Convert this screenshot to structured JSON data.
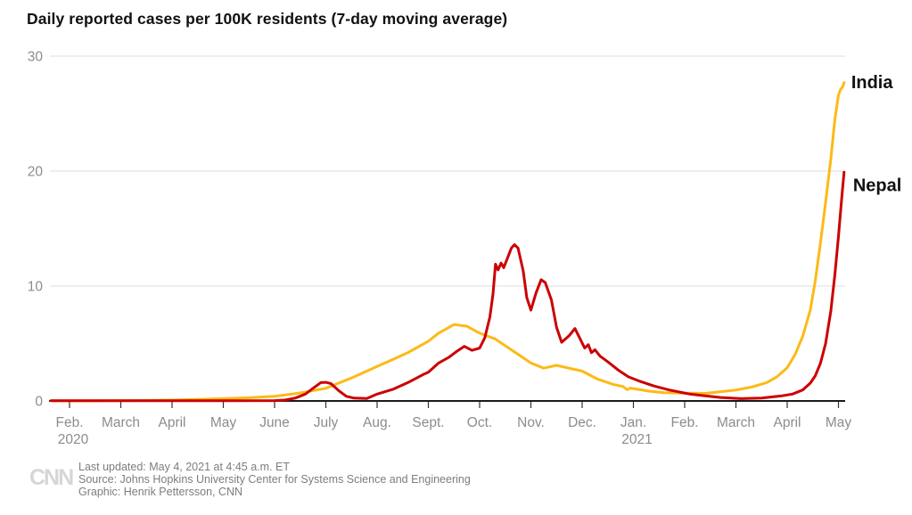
{
  "chart_data": {
    "type": "line",
    "title": "Daily reported cases per 100K residents (7-day moving average)",
    "xlabel": "",
    "ylabel": "",
    "ylim": [
      0,
      30
    ],
    "grid": "horizontal-only",
    "legend_position": "line-end-labels",
    "x_unit": "month_tick_index (0 = Feb 2020, 15 = May 2021)",
    "x_axis": {
      "tick_labels": [
        "Feb.",
        "March",
        "April",
        "May",
        "June",
        "July",
        "Aug.",
        "Sept.",
        "Oct.",
        "Nov.",
        "Dec.",
        "Jan.",
        "Feb.",
        "March",
        "April",
        "May"
      ],
      "year_labels": [
        {
          "tick_index": 0,
          "label": "2020"
        },
        {
          "tick_index": 11,
          "label": "2021"
        }
      ]
    },
    "y_axis": {
      "ticks": [
        0,
        10,
        20,
        30
      ]
    },
    "colors": {
      "axis": "#1a1a1a",
      "gridline": "#e3e3e3",
      "tick_text": "#8c8c8c",
      "label_text": "#111111"
    },
    "series": [
      {
        "name": "India",
        "color": "#fcba16",
        "label_offset": {
          "dx": 8,
          "dy": 1
        },
        "points": [
          [
            -0.36,
            0.02
          ],
          [
            0,
            0.02
          ],
          [
            0.5,
            0.02
          ],
          [
            1,
            0.03
          ],
          [
            1.5,
            0.05
          ],
          [
            2,
            0.08
          ],
          [
            2.5,
            0.13
          ],
          [
            3,
            0.2
          ],
          [
            3.5,
            0.28
          ],
          [
            4,
            0.4
          ],
          [
            4.5,
            0.7
          ],
          [
            5,
            1.1
          ],
          [
            5.5,
            2.0
          ],
          [
            6,
            3.0
          ],
          [
            6.3,
            3.6
          ],
          [
            6.6,
            4.2
          ],
          [
            7,
            5.2
          ],
          [
            7.2,
            5.9
          ],
          [
            7.5,
            6.65
          ],
          [
            7.75,
            6.5
          ],
          [
            8,
            5.9
          ],
          [
            8.3,
            5.4
          ],
          [
            8.6,
            4.5
          ],
          [
            9,
            3.3
          ],
          [
            9.25,
            2.85
          ],
          [
            9.5,
            3.1
          ],
          [
            9.7,
            2.9
          ],
          [
            10,
            2.6
          ],
          [
            10.3,
            1.9
          ],
          [
            10.6,
            1.45
          ],
          [
            10.8,
            1.25
          ],
          [
            10.88,
            0.98
          ],
          [
            10.94,
            1.12
          ],
          [
            11,
            1.08
          ],
          [
            11.3,
            0.85
          ],
          [
            11.6,
            0.72
          ],
          [
            12,
            0.68
          ],
          [
            12.4,
            0.66
          ],
          [
            12.8,
            0.85
          ],
          [
            13,
            0.95
          ],
          [
            13.3,
            1.2
          ],
          [
            13.6,
            1.6
          ],
          [
            13.8,
            2.1
          ],
          [
            14,
            2.9
          ],
          [
            14.15,
            4.0
          ],
          [
            14.3,
            5.6
          ],
          [
            14.45,
            7.9
          ],
          [
            14.55,
            10.5
          ],
          [
            14.65,
            13.8
          ],
          [
            14.75,
            17.3
          ],
          [
            14.85,
            21.0
          ],
          [
            14.93,
            24.5
          ],
          [
            15.0,
            26.6
          ],
          [
            15.04,
            27.1
          ],
          [
            15.08,
            27.3
          ],
          [
            15.11,
            27.7
          ]
        ]
      },
      {
        "name": "Nepal",
        "color": "#cc0000",
        "label_offset": {
          "dx": 10,
          "dy": 16
        },
        "points": [
          [
            -0.36,
            0.02
          ],
          [
            1,
            0.02
          ],
          [
            2,
            0.02
          ],
          [
            3,
            0.02
          ],
          [
            4,
            0.03
          ],
          [
            4.2,
            0.08
          ],
          [
            4.4,
            0.25
          ],
          [
            4.6,
            0.6
          ],
          [
            4.75,
            1.1
          ],
          [
            4.9,
            1.6
          ],
          [
            5.0,
            1.62
          ],
          [
            5.1,
            1.5
          ],
          [
            5.25,
            0.9
          ],
          [
            5.4,
            0.4
          ],
          [
            5.55,
            0.25
          ],
          [
            5.8,
            0.22
          ],
          [
            6.0,
            0.6
          ],
          [
            6.3,
            1.0
          ],
          [
            6.6,
            1.6
          ],
          [
            6.9,
            2.3
          ],
          [
            7.0,
            2.5
          ],
          [
            7.2,
            3.3
          ],
          [
            7.4,
            3.8
          ],
          [
            7.55,
            4.3
          ],
          [
            7.7,
            4.75
          ],
          [
            7.85,
            4.4
          ],
          [
            8.0,
            4.6
          ],
          [
            8.1,
            5.5
          ],
          [
            8.2,
            7.3
          ],
          [
            8.26,
            9.3
          ],
          [
            8.31,
            11.9
          ],
          [
            8.36,
            11.4
          ],
          [
            8.42,
            12.0
          ],
          [
            8.47,
            11.6
          ],
          [
            8.55,
            12.5
          ],
          [
            8.62,
            13.3
          ],
          [
            8.68,
            13.6
          ],
          [
            8.75,
            13.3
          ],
          [
            8.85,
            11.3
          ],
          [
            8.92,
            9.0
          ],
          [
            9.0,
            7.9
          ],
          [
            9.1,
            9.4
          ],
          [
            9.2,
            10.55
          ],
          [
            9.28,
            10.3
          ],
          [
            9.4,
            8.8
          ],
          [
            9.5,
            6.4
          ],
          [
            9.6,
            5.1
          ],
          [
            9.75,
            5.7
          ],
          [
            9.86,
            6.3
          ],
          [
            9.95,
            5.5
          ],
          [
            10.05,
            4.6
          ],
          [
            10.12,
            4.9
          ],
          [
            10.18,
            4.2
          ],
          [
            10.25,
            4.45
          ],
          [
            10.35,
            3.9
          ],
          [
            10.5,
            3.4
          ],
          [
            10.7,
            2.7
          ],
          [
            10.9,
            2.1
          ],
          [
            11.1,
            1.75
          ],
          [
            11.4,
            1.3
          ],
          [
            11.7,
            0.95
          ],
          [
            12.1,
            0.6
          ],
          [
            12.4,
            0.45
          ],
          [
            12.7,
            0.3
          ],
          [
            13.1,
            0.2
          ],
          [
            13.5,
            0.25
          ],
          [
            13.9,
            0.45
          ],
          [
            14.1,
            0.6
          ],
          [
            14.3,
            0.95
          ],
          [
            14.45,
            1.55
          ],
          [
            14.55,
            2.2
          ],
          [
            14.65,
            3.3
          ],
          [
            14.75,
            5.0
          ],
          [
            14.85,
            7.8
          ],
          [
            14.93,
            11.0
          ],
          [
            15.0,
            14.3
          ],
          [
            15.06,
            17.5
          ],
          [
            15.11,
            19.9
          ]
        ]
      }
    ]
  },
  "footer": {
    "logo": "CNN",
    "lines": [
      "Last updated: May 4, 2021 at 4:45 a.m. ET",
      "Source: Johns Hopkins University Center for Systems Science and Engineering",
      "Graphic: Henrik Pettersson, CNN"
    ]
  }
}
